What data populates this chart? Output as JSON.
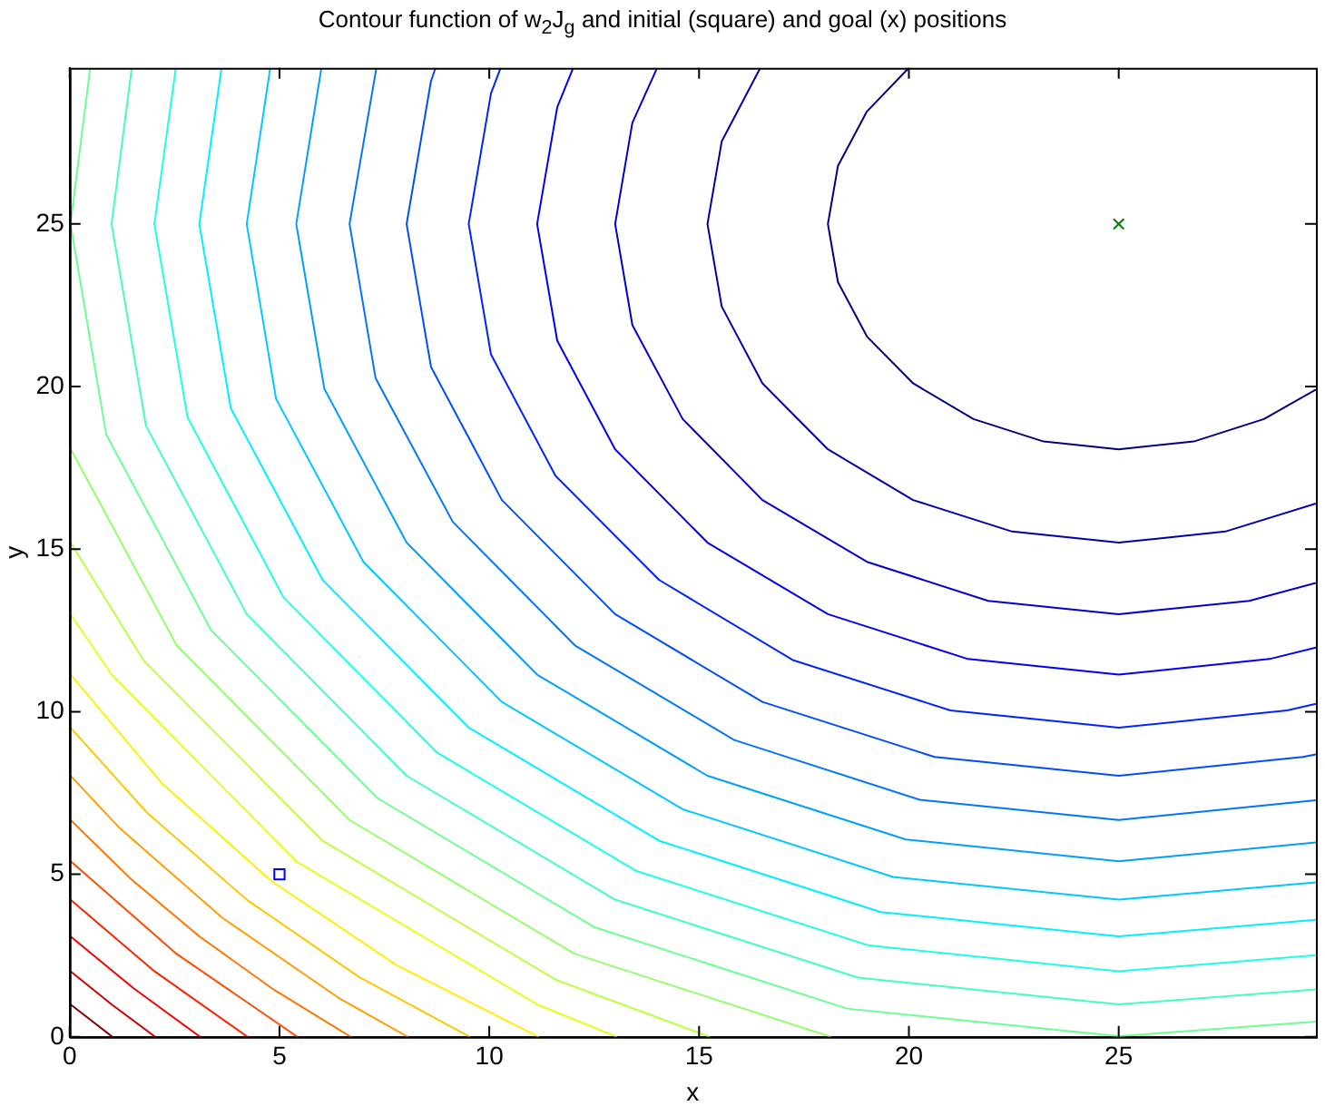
{
  "chart_data": {
    "type": "line",
    "title": "Contour function of w$_{2}$J$_{g}$ and initial (square) and goal (x) positions",
    "xlabel": "x",
    "ylabel": "y",
    "xlim": [
      0,
      29.7
    ],
    "ylim": [
      0,
      29.8
    ],
    "xticks": [
      0,
      5,
      10,
      15,
      20,
      25
    ],
    "yticks": [
      0,
      5,
      10,
      15,
      20,
      25
    ],
    "grid": false,
    "legend": false,
    "marker": "none",
    "line_style": "solid",
    "series": [
      {
        "color": "#000080",
        "x": [
          20.0,
          19.0,
          18.31,
          18.07,
          18.31,
          19.0,
          20.1,
          21.54,
          23.21,
          25,
          26.79,
          28.46,
          29.7
        ],
        "values": [
          29.8,
          28.46,
          26.79,
          25,
          23.21,
          21.54,
          20.1,
          19.0,
          18.31,
          18.07,
          18.31,
          19.0,
          19.91
        ]
      },
      {
        "color": "#0000a8",
        "x": [
          16.46,
          15.54,
          15.2,
          15.54,
          16.51,
          18.07,
          20.1,
          22.46,
          25,
          27.54,
          29.7
        ],
        "values": [
          29.8,
          27.54,
          25,
          22.46,
          20.1,
          18.07,
          16.51,
          15.54,
          15.2,
          15.54,
          16.4
        ]
      },
      {
        "color": "#0000d1",
        "x": [
          14.0,
          13.41,
          13,
          13.41,
          14.61,
          16.51,
          19,
          21.89,
          25,
          28.11,
          29.7
        ],
        "values": [
          29.8,
          28.11,
          25,
          21.89,
          19,
          16.51,
          14.61,
          13.41,
          13,
          13.41,
          13.96
        ]
      },
      {
        "color": "#0000fa",
        "x": [
          12.0,
          11.62,
          11.14,
          11.62,
          13.0,
          15.2,
          18.07,
          21.41,
          25,
          28.59,
          29.7
        ],
        "values": [
          29.8,
          28.59,
          25,
          21.41,
          18.07,
          15.2,
          13.0,
          11.62,
          11.14,
          11.62,
          11.97
        ]
      },
      {
        "color": "#0024ff",
        "x": [
          10.27,
          10.04,
          9.51,
          10.04,
          11.58,
          14.05,
          17.25,
          20.99,
          25,
          29.01,
          29.7
        ],
        "values": [
          29.8,
          29.01,
          25,
          20.99,
          17.25,
          14.05,
          11.58,
          10.04,
          9.51,
          10.04,
          10.24
        ]
      },
      {
        "color": "#004dff",
        "x": [
          8.72,
          8.61,
          8.03,
          8.61,
          10.3,
          13.0,
          16.51,
          20.61,
          25,
          29.39,
          29.7
        ],
        "values": [
          29.8,
          29.39,
          25,
          20.61,
          16.51,
          13.0,
          10.3,
          8.61,
          8.03,
          8.61,
          8.69
        ]
      },
      {
        "color": "#0075ff",
        "x": [
          7.31,
          6.67,
          7.29,
          9.13,
          12.04,
          15.84,
          20.26,
          25,
          29.7
        ],
        "values": [
          29.8,
          25,
          20.26,
          15.84,
          12.04,
          9.13,
          7.29,
          6.67,
          7.28
        ]
      },
      {
        "color": "#009eff",
        "x": [
          6.0,
          5.4,
          6.07,
          8.03,
          11.14,
          15.2,
          19.93,
          25,
          29.7
        ],
        "values": [
          29.8,
          25,
          19.93,
          15.2,
          11.14,
          8.03,
          6.07,
          5.4,
          5.98
        ]
      },
      {
        "color": "#00c7ff",
        "x": [
          4.78,
          4.22,
          4.92,
          7.0,
          10.3,
          14.61,
          19.62,
          25,
          29.7
        ],
        "values": [
          29.8,
          25,
          19.62,
          14.61,
          10.3,
          7.0,
          4.92,
          4.22,
          4.75
        ]
      },
      {
        "color": "#00f0ff",
        "x": [
          3.62,
          3.09,
          3.84,
          6.03,
          9.51,
          14.05,
          19.33,
          25,
          29.7
        ],
        "values": [
          29.8,
          25,
          19.33,
          14.05,
          9.51,
          6.03,
          3.84,
          3.09,
          3.6
        ]
      },
      {
        "color": "#1affe6",
        "x": [
          2.53,
          2.02,
          2.81,
          5.1,
          8.75,
          13.51,
          19.05,
          25,
          29.7
        ],
        "values": [
          29.8,
          25,
          19.05,
          13.51,
          8.75,
          5.1,
          2.81,
          2.02,
          2.51
        ]
      },
      {
        "color": "#42ffbd",
        "x": [
          1.48,
          1,
          1.82,
          4.22,
          8.03,
          13.0,
          18.79,
          25,
          29.7
        ],
        "values": [
          29.8,
          25,
          18.79,
          13.0,
          8.03,
          4.22,
          1.82,
          1,
          1.46
        ]
      },
      {
        "color": "#6bff94",
        "x": [
          0.49,
          0.02,
          0.87,
          3.37,
          7.34,
          12.51,
          18.53,
          25,
          29.7
        ],
        "values": [
          29.8,
          25,
          18.53,
          12.51,
          7.34,
          3.37,
          0.87,
          0.02,
          0.47
        ]
      },
      {
        "color": "#94ff6b",
        "x": [
          0,
          2.55,
          6.67,
          12.04,
          18.14
        ],
        "values": [
          18.14,
          12.04,
          6.67,
          2.55,
          0
        ]
      },
      {
        "color": "#bdff42",
        "x": [
          0,
          1.76,
          6.03,
          11.58,
          15.25
        ],
        "values": [
          15.25,
          11.58,
          6.03,
          1.76,
          0
        ]
      },
      {
        "color": "#e6ff1a",
        "x": [
          0,
          1.0,
          5.4,
          11.14,
          13.04
        ],
        "values": [
          13.04,
          11.14,
          5.4,
          1.0,
          0
        ]
      },
      {
        "color": "#fff000",
        "x": [
          0,
          2.19,
          4.8,
          7.81,
          11.18
        ],
        "values": [
          11.18,
          7.81,
          4.8,
          2.19,
          0
        ]
      },
      {
        "color": "#ffc700",
        "x": [
          0,
          1.84,
          4.22,
          6.9,
          9.54
        ],
        "values": [
          9.54,
          6.9,
          4.22,
          1.84,
          0
        ]
      },
      {
        "color": "#ff9e00",
        "x": [
          0,
          1.2,
          3.65,
          6.41,
          8.06
        ],
        "values": [
          8.06,
          6.41,
          3.65,
          1.2,
          0
        ]
      },
      {
        "color": "#ff7500",
        "x": [
          0,
          1.44,
          3.09,
          4.88,
          6.7
        ],
        "values": [
          6.7,
          4.88,
          3.09,
          1.44,
          0
        ]
      },
      {
        "color": "#ff4d00",
        "x": [
          0,
          2.55,
          5.43
        ],
        "values": [
          5.43,
          2.55,
          0
        ]
      },
      {
        "color": "#ff2400",
        "x": [
          0,
          2.02,
          4.24
        ],
        "values": [
          4.24,
          2.02,
          0
        ]
      },
      {
        "color": "#fa0000",
        "x": [
          0,
          1.51,
          3.11
        ],
        "values": [
          3.11,
          1.51,
          0
        ]
      },
      {
        "color": "#d10000",
        "x": [
          0,
          1.0,
          2.04
        ],
        "values": [
          2.04,
          1.0,
          0
        ]
      },
      {
        "color": "#800000",
        "x": [
          0,
          0.51,
          1.02
        ],
        "values": [
          1.02,
          0.51,
          0
        ]
      },
      {
        "type": "scatter",
        "marker": "square",
        "color": "#0000ff",
        "x": [
          5
        ],
        "values": [
          5
        ]
      },
      {
        "type": "scatter",
        "marker": "cross",
        "color": "#008000",
        "x": [
          25
        ],
        "values": [
          25
        ]
      }
    ]
  }
}
